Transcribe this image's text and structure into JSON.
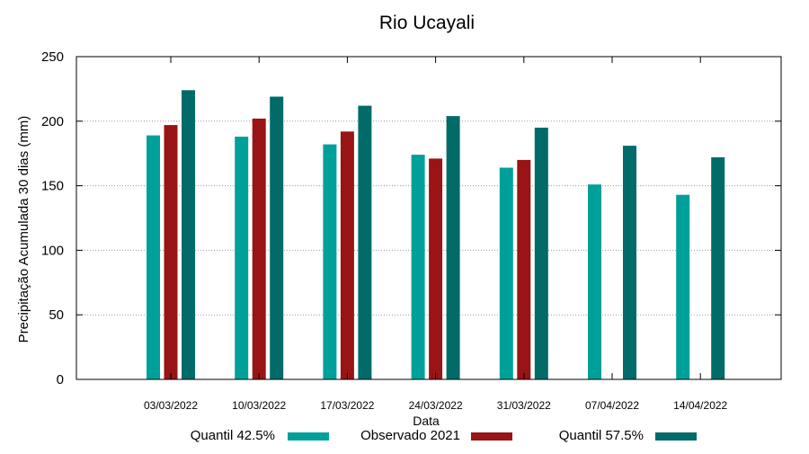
{
  "chart_data": {
    "type": "bar",
    "title": "Rio Ucayali",
    "xlabel": "Data",
    "ylabel": "Precipitação Acumulada 30 dias (mm)",
    "ylim": [
      0,
      250
    ],
    "yticks": [
      0,
      50,
      100,
      150,
      200,
      250
    ],
    "grid": true,
    "legend_position": "bottom",
    "categories": [
      "03/03/2022",
      "10/03/2022",
      "17/03/2022",
      "24/03/2022",
      "31/03/2022",
      "07/04/2022",
      "14/04/2022"
    ],
    "series": [
      {
        "name": "Quantil 42.5%",
        "color": "#00A09A",
        "values": [
          189,
          188,
          182,
          174,
          164,
          151,
          143
        ]
      },
      {
        "name": "Observado 2021",
        "color": "#991414",
        "values": [
          197,
          202,
          192,
          171,
          170,
          null,
          null
        ]
      },
      {
        "name": "Quantil 57.5%",
        "color": "#006B68",
        "values": [
          224,
          219,
          212,
          204,
          195,
          181,
          172
        ]
      }
    ]
  }
}
